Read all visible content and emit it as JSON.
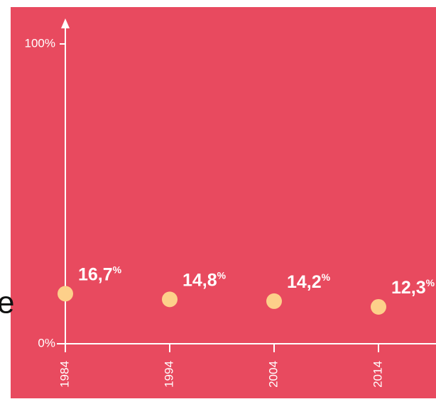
{
  "chart_data": {
    "type": "scatter",
    "categories": [
      "1984",
      "1994",
      "2004",
      "2014"
    ],
    "values": [
      16.7,
      14.8,
      14.2,
      12.3
    ],
    "value_labels": [
      "16,7%",
      "14,8%",
      "14,2%",
      "12,3%"
    ],
    "color": "#fdd08a",
    "background": "#e84a5f",
    "ylim": [
      0,
      100
    ],
    "yticks": [
      {
        "value": 0,
        "label": "0%"
      },
      {
        "value": 100,
        "label": "100%"
      }
    ],
    "edge_text": "e"
  }
}
